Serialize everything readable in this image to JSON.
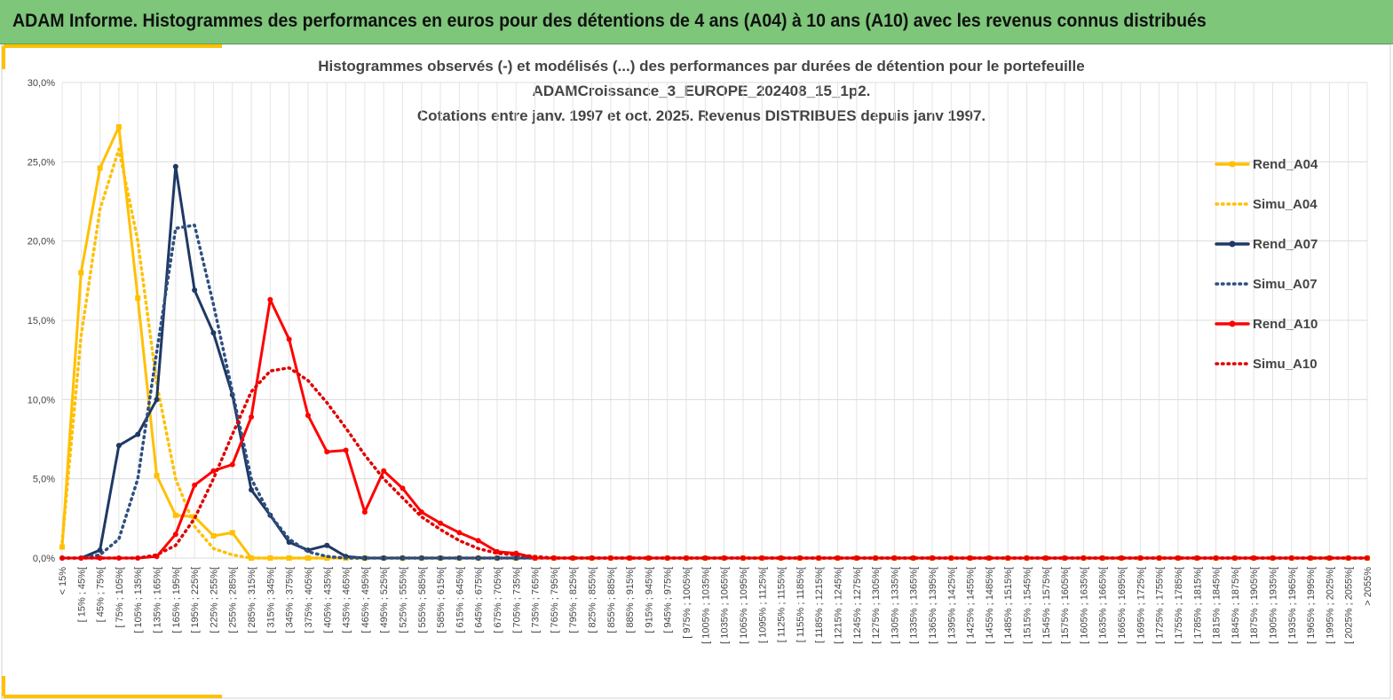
{
  "header": "ADAM Informe. Histogrammes des performances en euros pour des détentions de 4 ans (A04) à 10 ans (A10) avec les revenus connus distribués",
  "chart_data": {
    "type": "line",
    "title": [
      "Histogrammes observés (-) et modélisés (...) des performances  par durées de détention pour le portefeuille",
      "ADAMCroissance_3_EUROPE_202408_15_1p2.",
      "Cotations entre janv. 1997 et oct. 2025. Revenus DISTRIBUES depuis janv 1997."
    ],
    "categories": [
      "< 15%",
      "[ 15% ; 45%[",
      "[ 45% ; 75%[",
      "[ 75% ; 105%[",
      "[ 105% ; 135%[",
      "[ 135% ; 165%[",
      "[ 165% ; 195%[",
      "[ 195% ; 225%[",
      "[ 225% ; 255%[",
      "[ 255% ; 285%[",
      "[ 285% ; 315%[",
      "[ 315% ; 345%[",
      "[ 345% ; 375%[",
      "[ 375% ; 405%[",
      "[ 405% ; 435%[",
      "[ 435% ; 465%[",
      "[ 465% ; 495%[",
      "[ 495% ; 525%[",
      "[ 525% ; 555%[",
      "[ 555% ; 585%[",
      "[ 585% ; 615%[",
      "[ 615% ; 645%[",
      "[ 645% ; 675%[",
      "[ 675% ; 705%[",
      "[ 705% ; 735%[",
      "[ 735% ; 765%[",
      "[ 765% ; 795%[",
      "[ 795% ; 825%[",
      "[ 825% ; 855%[",
      "[ 855% ; 885%[",
      "[ 885% ; 915%[",
      "[ 915% ; 945%[",
      "[ 945% ; 975%[",
      "[ 975% ; 1005%[",
      "[ 1005% ; 1035%[",
      "[ 1035% ; 1065%[",
      "[ 1065% ; 1095%[",
      "[ 1095% ; 1125%[",
      "[ 1125% ; 1155%[",
      "[ 1155% ; 1185%[",
      "[ 1185% ; 1215%[",
      "[ 1215% ; 1245%[",
      "[ 1245% ; 1275%[",
      "[ 1275% ; 1305%[",
      "[ 1305% ; 1335%[",
      "[ 1335% ; 1365%[",
      "[ 1365% ; 1395%[",
      "[ 1395% ; 1425%[",
      "[ 1425% ; 1455%[",
      "[ 1455% ; 1485%[",
      "[ 1485% ; 1515%[",
      "[ 1515% ; 1545%[",
      "[ 1545% ; 1575%[",
      "[ 1575% ; 1605%[",
      "[ 1605% ; 1635%[",
      "[ 1635% ; 1665%[",
      "[ 1665% ; 1695%[",
      "[ 1695% ; 1725%[",
      "[ 1725% ; 1755%[",
      "[ 1755% ; 1785%[",
      "[ 1785% ; 1815%[",
      "[ 1815% ; 1845%[",
      "[ 1845% ; 1875%[",
      "[ 1875% ; 1905%[",
      "[ 1905% ; 1935%[",
      "[ 1935% ; 1965%[",
      "[ 1965% ; 1995%[",
      "[ 1995% ; 2025%[",
      "[ 2025% ; 2055%[",
      "> 2055%"
    ],
    "series": [
      {
        "name": "Rend_A04",
        "color": "#ffc000",
        "dash": false,
        "marker": "square",
        "values": [
          0.7,
          18.0,
          24.6,
          27.2,
          16.4,
          5.2,
          2.7,
          2.6,
          1.4,
          1.6,
          0,
          0,
          0,
          0,
          0,
          0,
          0,
          0,
          0,
          0,
          0,
          0,
          0,
          0,
          0,
          0,
          0,
          0,
          0,
          0,
          0,
          0,
          0,
          0,
          0,
          0,
          0,
          0,
          0,
          0,
          0,
          0,
          0,
          0,
          0,
          0,
          0,
          0,
          0,
          0,
          0,
          0,
          0,
          0,
          0,
          0,
          0,
          0,
          0,
          0,
          0,
          0,
          0,
          0,
          0,
          0,
          0,
          0,
          0,
          0
        ]
      },
      {
        "name": "Simu_A04",
        "color": "#ffc000",
        "dash": true,
        "marker": "none",
        "values": [
          1.0,
          14,
          22,
          25.8,
          20,
          11,
          5,
          2,
          0.6,
          0.2,
          0,
          0,
          0,
          0,
          0,
          0,
          0,
          0,
          0,
          0,
          0,
          0,
          0,
          0,
          0,
          0,
          0,
          0,
          0,
          0,
          0,
          0,
          0,
          0,
          0,
          0,
          0,
          0,
          0,
          0,
          0,
          0,
          0,
          0,
          0,
          0,
          0,
          0,
          0,
          0,
          0,
          0,
          0,
          0,
          0,
          0,
          0,
          0,
          0,
          0,
          0,
          0,
          0,
          0,
          0,
          0,
          0,
          0,
          0,
          0
        ]
      },
      {
        "name": "Rend_A07",
        "color": "#1f3864",
        "dash": false,
        "marker": "circle",
        "values": [
          0,
          0,
          0.5,
          7.1,
          7.8,
          10.0,
          24.7,
          16.9,
          14.2,
          10.3,
          4.3,
          2.7,
          1.0,
          0.5,
          0.8,
          0.1,
          0,
          0,
          0,
          0,
          0,
          0,
          0,
          0,
          0,
          0,
          0,
          0,
          0,
          0,
          0,
          0,
          0,
          0,
          0,
          0,
          0,
          0,
          0,
          0,
          0,
          0,
          0,
          0,
          0,
          0,
          0,
          0,
          0,
          0,
          0,
          0,
          0,
          0,
          0,
          0,
          0,
          0,
          0,
          0,
          0,
          0,
          0,
          0,
          0,
          0,
          0,
          0,
          0,
          0
        ]
      },
      {
        "name": "Simu_A07",
        "color": "#2f4f7f",
        "dash": true,
        "marker": "none",
        "values": [
          0,
          0,
          0.2,
          1.2,
          5,
          13,
          20.8,
          21,
          16,
          10.5,
          5,
          2.7,
          1.2,
          0.4,
          0.1,
          0,
          0,
          0,
          0,
          0,
          0,
          0,
          0,
          0,
          0,
          0,
          0,
          0,
          0,
          0,
          0,
          0,
          0,
          0,
          0,
          0,
          0,
          0,
          0,
          0,
          0,
          0,
          0,
          0,
          0,
          0,
          0,
          0,
          0,
          0,
          0,
          0,
          0,
          0,
          0,
          0,
          0,
          0,
          0,
          0,
          0,
          0,
          0,
          0,
          0,
          0,
          0,
          0,
          0,
          0
        ]
      },
      {
        "name": "Rend_A10",
        "color": "#ff0000",
        "dash": false,
        "marker": "circle",
        "values": [
          0,
          0,
          0,
          0,
          0,
          0.1,
          1.5,
          4.6,
          5.5,
          5.9,
          8.9,
          16.3,
          13.8,
          9.0,
          6.7,
          6.8,
          2.9,
          5.5,
          4.4,
          2.9,
          2.2,
          1.6,
          1.1,
          0.4,
          0.3,
          0,
          0,
          0,
          0,
          0,
          0,
          0,
          0,
          0,
          0,
          0,
          0,
          0,
          0,
          0,
          0,
          0,
          0,
          0,
          0,
          0,
          0,
          0,
          0,
          0,
          0,
          0,
          0,
          0,
          0,
          0,
          0,
          0,
          0,
          0,
          0,
          0,
          0,
          0,
          0,
          0,
          0,
          0,
          0,
          0
        ]
      },
      {
        "name": "Simu_A10",
        "color": "#e00000",
        "dash": true,
        "marker": "none",
        "values": [
          0,
          0,
          0,
          0,
          0,
          0.2,
          0.8,
          2.5,
          5,
          7.8,
          10.5,
          11.8,
          12.0,
          11.2,
          9.8,
          8.2,
          6.5,
          5,
          3.8,
          2.6,
          1.8,
          1.1,
          0.6,
          0.3,
          0.2,
          0.1,
          0,
          0,
          0,
          0,
          0,
          0,
          0,
          0,
          0,
          0,
          0,
          0,
          0,
          0,
          0,
          0,
          0,
          0,
          0,
          0,
          0,
          0,
          0,
          0,
          0,
          0,
          0,
          0,
          0,
          0,
          0,
          0,
          0,
          0,
          0,
          0,
          0,
          0,
          0,
          0,
          0,
          0,
          0,
          0
        ]
      }
    ],
    "ylim": [
      0,
      30
    ],
    "yticks": [
      {
        "value": 0,
        "label": "0,0%"
      },
      {
        "value": 5,
        "label": "5,0%"
      },
      {
        "value": 10,
        "label": "10,0%"
      },
      {
        "value": 15,
        "label": "15,0%"
      },
      {
        "value": 20,
        "label": "20,0%"
      },
      {
        "value": 25,
        "label": "25,0%"
      },
      {
        "value": 30,
        "label": "30,0%"
      }
    ],
    "grid": true,
    "legend": "right"
  }
}
